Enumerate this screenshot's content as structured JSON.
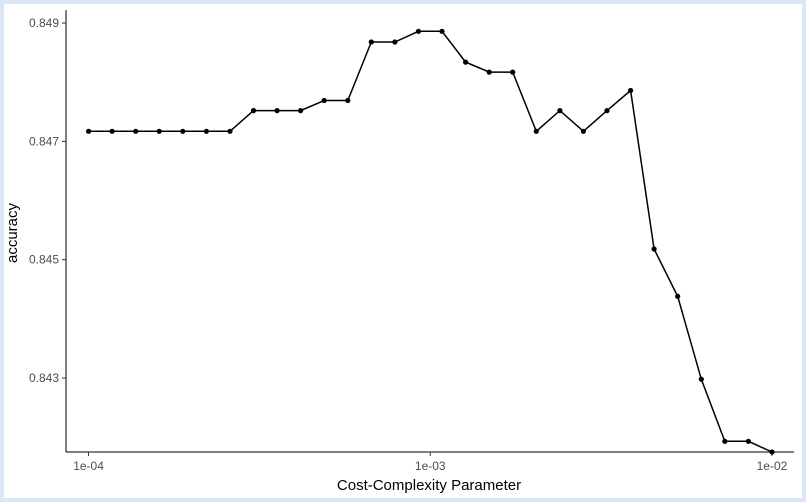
{
  "chart_data": {
    "type": "line",
    "title": "",
    "xlabel": "Cost-Complexity Parameter",
    "ylabel": "accuracy",
    "x_scale": "log10",
    "xlim": [
      8.59e-05,
      0.0116
    ],
    "ylim": [
      0.84175,
      0.84922
    ],
    "x_ticks": [
      0.0001,
      0.001,
      0.01
    ],
    "x_tick_labels": [
      "1e-04",
      "1e-03",
      "1e-02"
    ],
    "y_ticks": [
      0.843,
      0.845,
      0.847,
      0.849
    ],
    "y_tick_labels": [
      "0.843",
      "0.845",
      "0.847",
      "0.849"
    ],
    "grid": false,
    "legend": "none",
    "line_color": "#000000",
    "series": [
      {
        "x": [
          0.0001,
          0.0001172,
          0.0001374,
          0.000161,
          0.0001887,
          0.0002212,
          0.0002593,
          0.0003039,
          0.0003562,
          0.0004175,
          0.0004894,
          0.0005736,
          0.0006723,
          0.000788,
          0.0009237,
          0.0010826,
          0.001269,
          0.0014874,
          0.0017433,
          0.0020434,
          0.0023951,
          0.0028072,
          0.0032903,
          0.0038566,
          0.0045204,
          0.0052983,
          0.0062102,
          0.007279,
          0.0085317,
          0.01
        ],
        "values": [
          0.84717,
          0.84717,
          0.84717,
          0.84717,
          0.84717,
          0.84717,
          0.84717,
          0.84752,
          0.84752,
          0.84752,
          0.84769,
          0.84769,
          0.84868,
          0.84868,
          0.84886,
          0.84886,
          0.84834,
          0.84817,
          0.84817,
          0.84717,
          0.84752,
          0.84717,
          0.84752,
          0.84786,
          0.84518,
          0.84438,
          0.84298,
          0.84193,
          0.84193,
          0.84175
        ]
      }
    ]
  }
}
